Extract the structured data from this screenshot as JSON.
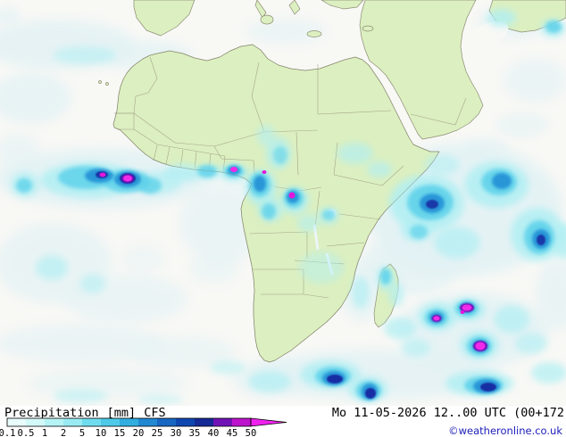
{
  "map": {
    "region_label": "Africa precipitation forecast map"
  },
  "footer": {
    "parameter_label": "Precipitation",
    "unit_label": "[mm]",
    "model_label": "CFS",
    "datetime_label": "Mo 11-05-2026 12..00 UTC (00+172",
    "copyright_label": "©weatheronline.co.uk"
  },
  "legend": {
    "tick_labels": [
      "0.1",
      "0.5",
      "1",
      "2",
      "5",
      "10",
      "15",
      "20",
      "25",
      "30",
      "35",
      "40",
      "45",
      "50"
    ],
    "segment_colors": [
      "#e9fdfd",
      "#d4f9f9",
      "#b6f3f5",
      "#98ebf2",
      "#6fdcee",
      "#4ec9e8",
      "#31addf",
      "#2288d2",
      "#1766c2",
      "#0f47b0",
      "#142a96",
      "#7014b6",
      "#bc14cc"
    ],
    "arrow_color": "#ee22ee"
  }
}
